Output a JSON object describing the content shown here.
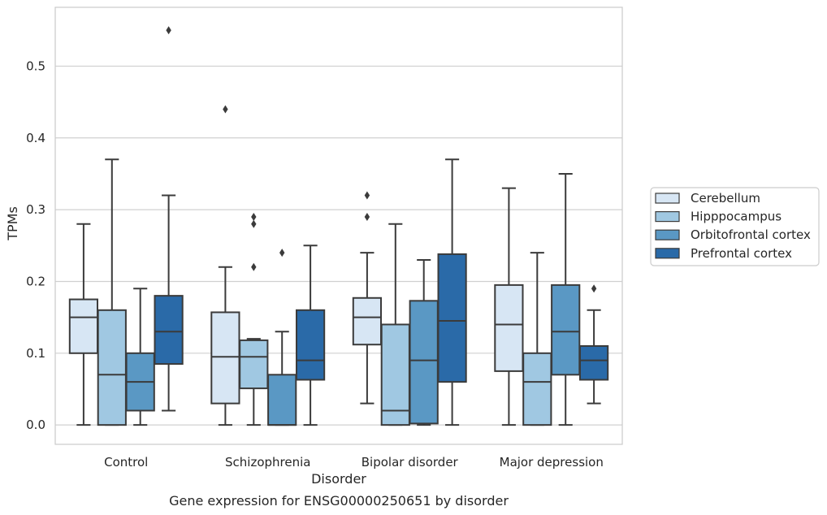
{
  "chart_data": {
    "type": "boxplot",
    "title": "Gene expression for ENSG00000250651 by disorder",
    "xlabel": "Disorder",
    "ylabel": "TPMs",
    "ylim": [
      -0.027,
      0.582
    ],
    "yticks": [
      "0.0",
      "0.1",
      "0.2",
      "0.3",
      "0.4",
      "0.5"
    ],
    "grid": true,
    "legend_position": "right",
    "categories": [
      "Control",
      "Schizophrenia",
      "Bipolar disorder",
      "Major depression"
    ],
    "series": [
      {
        "name": "Cerebellum",
        "color": "#d7e6f4",
        "boxes": [
          {
            "whislo": 0.0,
            "q1": 0.1,
            "med": 0.15,
            "q3": 0.175,
            "whishi": 0.28,
            "fliers": []
          },
          {
            "whislo": 0.0,
            "q1": 0.03,
            "med": 0.095,
            "q3": 0.157,
            "whishi": 0.22,
            "fliers": [
              0.44
            ]
          },
          {
            "whislo": 0.03,
            "q1": 0.112,
            "med": 0.15,
            "q3": 0.177,
            "whishi": 0.24,
            "fliers": [
              0.29,
              0.32
            ]
          },
          {
            "whislo": 0.0,
            "q1": 0.075,
            "med": 0.14,
            "q3": 0.195,
            "whishi": 0.33,
            "fliers": []
          }
        ]
      },
      {
        "name": "Hipppocampus",
        "color": "#a0c8e2",
        "boxes": [
          {
            "whislo": 0.0,
            "q1": 0.0,
            "med": 0.07,
            "q3": 0.16,
            "whishi": 0.37,
            "fliers": []
          },
          {
            "whislo": 0.0,
            "q1": 0.051,
            "med": 0.095,
            "q3": 0.118,
            "whishi": 0.12,
            "fliers": [
              0.22,
              0.28,
              0.29
            ]
          },
          {
            "whislo": 0.0,
            "q1": 0.0,
            "med": 0.02,
            "q3": 0.14,
            "whishi": 0.28,
            "fliers": []
          },
          {
            "whislo": 0.0,
            "q1": 0.0,
            "med": 0.06,
            "q3": 0.1,
            "whishi": 0.24,
            "fliers": []
          }
        ]
      },
      {
        "name": "Orbitofrontal cortex",
        "color": "#5a98c4",
        "boxes": [
          {
            "whislo": 0.0,
            "q1": 0.02,
            "med": 0.06,
            "q3": 0.1,
            "whishi": 0.19,
            "fliers": []
          },
          {
            "whislo": 0.0,
            "q1": 0.0,
            "med": 0.0,
            "q3": 0.07,
            "whishi": 0.13,
            "fliers": [
              0.24
            ]
          },
          {
            "whislo": 0.0,
            "q1": 0.002,
            "med": 0.09,
            "q3": 0.173,
            "whishi": 0.23,
            "fliers": []
          },
          {
            "whislo": 0.0,
            "q1": 0.07,
            "med": 0.13,
            "q3": 0.195,
            "whishi": 0.35,
            "fliers": []
          }
        ]
      },
      {
        "name": "Prefrontal cortex",
        "color": "#2a6aa8",
        "boxes": [
          {
            "whislo": 0.02,
            "q1": 0.085,
            "med": 0.13,
            "q3": 0.18,
            "whishi": 0.32,
            "fliers": [
              0.55
            ]
          },
          {
            "whislo": 0.0,
            "q1": 0.063,
            "med": 0.09,
            "q3": 0.16,
            "whishi": 0.25,
            "fliers": []
          },
          {
            "whislo": 0.0,
            "q1": 0.06,
            "med": 0.145,
            "q3": 0.238,
            "whishi": 0.37,
            "fliers": []
          },
          {
            "whislo": 0.03,
            "q1": 0.063,
            "med": 0.09,
            "q3": 0.11,
            "whishi": 0.16,
            "fliers": [
              0.19
            ]
          }
        ]
      }
    ]
  }
}
